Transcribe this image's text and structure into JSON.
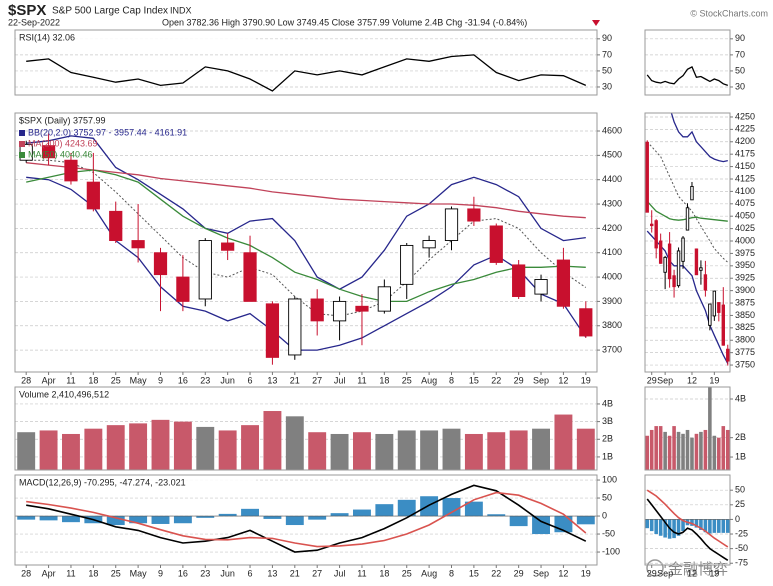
{
  "header": {
    "symbol": "$SPX",
    "name": "S&P 500 Large Cap Index",
    "exchange": "INDX",
    "date": "22-Sep-2022",
    "quote": "Open 3782.36 High 3790.90 Low 3749.45 Close 3757.99 Volume 2.4B Chg -31.94 (-0.84%)",
    "source": "© StockCharts.com",
    "watermark": "金融博弈"
  },
  "chart_data": [
    {
      "type": "line",
      "title": "RSI(14) 32.06",
      "values": [
        62,
        65,
        48,
        42,
        36,
        40,
        32,
        35,
        55,
        50,
        40,
        25,
        50,
        45,
        50,
        45,
        55,
        65,
        62,
        68,
        70,
        48,
        38,
        45,
        44,
        32
      ],
      "color": "#000000",
      "ylim": [
        20,
        101
      ],
      "yticks": [
        30,
        50,
        70,
        90
      ],
      "grid": true
    },
    {
      "type": "candlestick",
      "title": "$SPX (Daily) 3757.99",
      "categories": [
        "28",
        "Apr",
        "11",
        "18",
        "25",
        "May",
        "9",
        "16",
        "23",
        "Jun",
        "6",
        "13",
        "21",
        "27",
        "Jul",
        "11",
        "18",
        "25",
        "Aug",
        "8",
        "15",
        "22",
        "29",
        "Sep",
        "12",
        "19"
      ],
      "open": [
        4480,
        4540,
        4480,
        4390,
        4270,
        4150,
        4100,
        4000,
        3910,
        4140,
        4100,
        3890,
        3680,
        3910,
        3820,
        3880,
        3860,
        3970,
        4120,
        4150,
        4280,
        4210,
        4050,
        3930,
        4070,
        3870
      ],
      "high": [
        4560,
        4590,
        4510,
        4510,
        4310,
        4300,
        4120,
        4090,
        4160,
        4180,
        4170,
        3900,
        3920,
        3950,
        3920,
        3930,
        3990,
        4140,
        4170,
        4290,
        4330,
        4220,
        4070,
        4010,
        4120,
        3900
      ],
      "low": [
        4470,
        4460,
        4380,
        4270,
        4140,
        4060,
        3860,
        3860,
        3880,
        4070,
        3900,
        3640,
        3660,
        3760,
        3740,
        3720,
        3850,
        3910,
        4080,
        4110,
        4210,
        4050,
        3910,
        3900,
        3870,
        3750
      ],
      "close": [
        4545,
        4490,
        4395,
        4280,
        4150,
        4120,
        4010,
        3900,
        4150,
        4110,
        3900,
        3670,
        3910,
        3820,
        3900,
        3860,
        3960,
        4130,
        4150,
        4280,
        4230,
        4060,
        3920,
        3990,
        3880,
        3758
      ],
      "up_color": "#000000",
      "down_color": "#c8102e",
      "bands": {
        "name": "BB(20,2.0) 3752.97 - 3957.44 - 4161.91",
        "color": "#27278c",
        "upper": [
          4550,
          4560,
          4580,
          4570,
          4450,
          4400,
          4340,
          4280,
          4200,
          4180,
          4230,
          4240,
          4150,
          4000,
          3950,
          4000,
          4110,
          4250,
          4300,
          4380,
          4410,
          4380,
          4330,
          4200,
          4150,
          4162
        ],
        "middle": [
          4480,
          4480,
          4470,
          4430,
          4350,
          4260,
          4170,
          4080,
          4020,
          4000,
          4040,
          4010,
          3920,
          3850,
          3840,
          3860,
          3900,
          3980,
          4070,
          4150,
          4230,
          4240,
          4200,
          4100,
          4020,
          3957
        ],
        "lower": [
          4410,
          4400,
          4360,
          4290,
          4150,
          4080,
          3960,
          3880,
          3860,
          3820,
          3850,
          3780,
          3700,
          3700,
          3720,
          3750,
          3800,
          3850,
          3900,
          3960,
          4050,
          4090,
          4030,
          3930,
          3890,
          3753
        ]
      },
      "series": [
        {
          "name": "MA(200) 4243.69",
          "color": "#c1435a",
          "values": [
            4470,
            4460,
            4450,
            4440,
            4430,
            4420,
            4405,
            4395,
            4385,
            4375,
            4365,
            4350,
            4340,
            4330,
            4320,
            4315,
            4310,
            4305,
            4300,
            4300,
            4295,
            4285,
            4270,
            4260,
            4250,
            4244
          ]
        },
        {
          "name": "MA(50) 4040.46",
          "color": "#3a8a3a",
          "values": [
            4390,
            4410,
            4430,
            4440,
            4420,
            4390,
            4320,
            4250,
            4200,
            4160,
            4130,
            4080,
            4020,
            3990,
            3950,
            3920,
            3900,
            3900,
            3940,
            3970,
            3990,
            4020,
            4040,
            4040,
            4045,
            4040
          ]
        }
      ],
      "ylim": [
        3610,
        4674
      ],
      "yticks": [
        3700,
        3800,
        3900,
        4000,
        4100,
        4200,
        4300,
        4400,
        4500,
        4600
      ],
      "grid": true
    },
    {
      "type": "bar",
      "title": "Volume 2,410,496,512",
      "values": [
        2.4,
        2.5,
        2.3,
        2.6,
        2.8,
        2.9,
        3.1,
        3.0,
        2.7,
        2.5,
        2.8,
        3.6,
        3.3,
        2.4,
        2.3,
        2.4,
        2.3,
        2.5,
        2.5,
        2.6,
        2.3,
        2.4,
        2.5,
        2.6,
        3.4,
        2.6
      ],
      "up_color": "#808080",
      "down_color": "#c8596a",
      "ylim": [
        0.26,
        4.96
      ],
      "yticks": [
        {
          "value": 1,
          "label": "1B"
        },
        {
          "value": 2,
          "label": "2B"
        },
        {
          "value": 3,
          "label": "3B"
        },
        {
          "value": 4,
          "label": "4B"
        }
      ],
      "grid": true
    },
    {
      "type": "line",
      "title": "MACD(12,26,9) -70.295, -47.274, -23.021",
      "categories": [
        "28",
        "Apr",
        "11",
        "18",
        "25",
        "May",
        "9",
        "16",
        "23",
        "Jun",
        "6",
        "13",
        "21",
        "27",
        "Jul",
        "11",
        "18",
        "25",
        "Aug",
        "8",
        "15",
        "22",
        "29",
        "Sep",
        "12",
        "19"
      ],
      "series": [
        {
          "type": "bar",
          "color": "#3b8dc4",
          "values": [
            -10,
            -12,
            -17,
            -20,
            -25,
            -20,
            -22,
            -20,
            -5,
            6,
            20,
            -8,
            -25,
            -10,
            8,
            18,
            33,
            45,
            55,
            50,
            40,
            5,
            -28,
            -50,
            -45,
            -23
          ]
        },
        {
          "color": "#000000",
          "values": [
            30,
            20,
            5,
            -10,
            -30,
            -40,
            -60,
            -75,
            -70,
            -60,
            -40,
            -70,
            -100,
            -95,
            -75,
            -60,
            -35,
            -5,
            30,
            60,
            85,
            70,
            30,
            -15,
            -40,
            -70
          ]
        },
        {
          "color": "#d9534f",
          "values": [
            40,
            32,
            22,
            10,
            -5,
            -20,
            -38,
            -55,
            -65,
            -66,
            -60,
            -62,
            -75,
            -85,
            -83,
            -78,
            -68,
            -50,
            -25,
            10,
            45,
            65,
            58,
            35,
            5,
            -47
          ]
        }
      ],
      "ylim": [
        -136,
        114
      ],
      "yticks": [
        -100,
        -50,
        0,
        50,
        100
      ],
      "grid": true
    },
    {
      "type": "line",
      "values": [
        45,
        38,
        36,
        35,
        37,
        35,
        34,
        40,
        44,
        52,
        55,
        42,
        43,
        40,
        37,
        40,
        38,
        34,
        32
      ],
      "color": "#000000",
      "ylim": [
        20,
        101
      ],
      "yticks": [
        30,
        50,
        70,
        90
      ],
      "grid": true
    },
    {
      "type": "candlestick",
      "categories": [
        null,
        "29",
        null,
        null,
        "Sep",
        null,
        null,
        null,
        null,
        null,
        "12",
        null,
        null,
        null,
        null,
        "19",
        null,
        null,
        null
      ],
      "open": [
        4199,
        4034,
        4041,
        4000,
        3937,
        3994,
        3930,
        3910,
        3959,
        4022,
        4083,
        3984,
        3941,
        3932,
        3830,
        3849,
        3876,
        3871,
        3782
      ],
      "high": [
        4203,
        4062,
        4044,
        4015,
        3970,
        4018,
        3942,
        3987,
        4010,
        4076,
        4119,
        3985,
        3961,
        3960,
        3873,
        3900,
        3876,
        3907,
        3791
      ],
      "low": [
        4058,
        4017,
        3965,
        3954,
        3903,
        3906,
        3886,
        3906,
        3944,
        4022,
        4083,
        3933,
        3912,
        3888,
        3820,
        3839,
        3838,
        3789,
        3749
      ],
      "close": [
        4058,
        4031,
        3986,
        3955,
        3967,
        3924,
        3908,
        3980,
        4006,
        4067,
        4110,
        3932,
        3946,
        3901,
        3873,
        3899,
        3856,
        3790,
        3758
      ],
      "up_color": "#000000",
      "down_color": "#c8102e",
      "bands": {
        "color": "#27278c",
        "upper": [
          4380,
          4370,
          4350,
          4330,
          4300,
          4270,
          4240,
          4220,
          4210,
          4210,
          4220,
          4200,
          4190,
          4180,
          4170,
          4165,
          4162,
          4160,
          4162
        ],
        "middle": [
          4200,
          4190,
          4180,
          4170,
          4150,
          4130,
          4110,
          4090,
          4080,
          4070,
          4060,
          4045,
          4030,
          4015,
          4000,
          3985,
          3975,
          3965,
          3957
        ],
        "lower": [
          4020,
          4010,
          4000,
          3990,
          3980,
          3960,
          3950,
          3950,
          3950,
          3940,
          3930,
          3900,
          3880,
          3860,
          3830,
          3810,
          3790,
          3770,
          3753
        ]
      },
      "series": [
        {
          "color": "#3a8a3a",
          "values": [
            4080,
            4070,
            4060,
            4055,
            4050,
            4045,
            4043,
            4042,
            4043,
            4045,
            4047,
            4048,
            4046,
            4045,
            4044,
            4043,
            4042,
            4041,
            4040
          ]
        }
      ],
      "ylim": [
        3736,
        4258
      ],
      "yticks": [
        3750,
        3775,
        3800,
        3825,
        3850,
        3875,
        3900,
        3925,
        3950,
        3975,
        4000,
        4025,
        4050,
        4075,
        4100,
        4125,
        4150,
        4175,
        4200,
        4225,
        4250
      ],
      "grid": true
    },
    {
      "type": "bar",
      "values": [
        2.1,
        2.4,
        2.6,
        2.6,
        2.3,
        2.1,
        2.6,
        2.3,
        2.2,
        2.4,
        2.0,
        2.2,
        2.3,
        2.4,
        4.7,
        2.1,
        2.0,
        2.6,
        2.4
      ],
      "up_color": "#808080",
      "down_color": "#c8596a",
      "ylim": [
        0.33,
        4.62
      ],
      "yticks": [
        {
          "value": 1,
          "label": "1B"
        },
        {
          "value": 2,
          "label": "2B"
        },
        {
          "value": 4,
          "label": "4B"
        }
      ],
      "grid": true
    },
    {
      "type": "line",
      "categories": [
        null,
        "29",
        null,
        null,
        "Sep",
        null,
        null,
        null,
        null,
        null,
        "12",
        null,
        null,
        null,
        null,
        "19",
        null,
        null,
        null
      ],
      "series": [
        {
          "type": "bar",
          "color": "#3b8dc4",
          "values": [
            -15,
            -20,
            -25,
            -28,
            -31,
            -33,
            -32,
            -28,
            -20,
            -10,
            -11,
            -14,
            -18,
            -22,
            -24,
            -23,
            -23,
            -23,
            -23
          ]
        },
        {
          "color": "#000000",
          "values": [
            35,
            25,
            15,
            5,
            -5,
            -15,
            -22,
            -25,
            -22,
            -15,
            -18,
            -25,
            -33,
            -42,
            -50,
            -55,
            -60,
            -65,
            -70
          ]
        },
        {
          "color": "#d9534f",
          "values": [
            50,
            45,
            40,
            33,
            26,
            18,
            10,
            3,
            -2,
            -5,
            -7,
            -11,
            -15,
            -20,
            -26,
            -32,
            -37,
            -42,
            -47
          ]
        }
      ],
      "ylim": [
        -78,
        76
      ],
      "yticks": [
        -75,
        -50,
        -25,
        0,
        25,
        50
      ],
      "grid": true
    }
  ]
}
